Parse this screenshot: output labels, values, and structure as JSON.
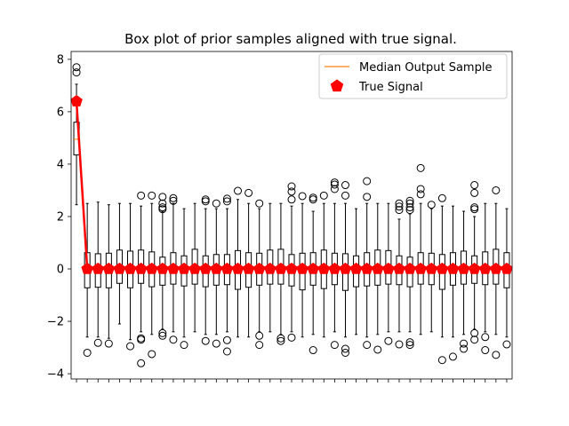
{
  "chart_data": {
    "type": "box",
    "title": "Box plot of prior samples aligned with true signal.",
    "xlabel": "",
    "ylabel": "",
    "ylim": [
      -4.2,
      8.3
    ],
    "yticks": [
      -4,
      -2,
      0,
      2,
      4,
      6,
      8
    ],
    "x_tick_labels_shown": false,
    "grid": false,
    "legend": {
      "position": "top-right",
      "entries": [
        {
          "label": "Median Output Sample",
          "marker": "line",
          "color": "#ff7f0e"
        },
        {
          "label": "True Signal",
          "marker": "pentagon",
          "color": "#ff0000"
        }
      ]
    },
    "box_color": "#000000",
    "median_color": "#ff7f0e",
    "true_signal_color": "#ff0000",
    "boxes": [
      {
        "median": 4.95,
        "q1": 4.35,
        "q3": 5.6,
        "whislo": 2.45,
        "whishi": 7.05,
        "fliers": [
          7.7,
          7.5
        ],
        "true": 6.4
      },
      {
        "median": 0.0,
        "q1": -0.72,
        "q3": 0.62,
        "whislo": -2.6,
        "whishi": 2.5,
        "fliers": [
          -3.2
        ],
        "true": 0.0
      },
      {
        "median": 0.0,
        "q1": -0.7,
        "q3": 0.58,
        "whislo": -2.6,
        "whishi": 2.55,
        "fliers": [
          -2.82
        ],
        "true": 0.0
      },
      {
        "median": 0.0,
        "q1": -0.72,
        "q3": 0.6,
        "whislo": -2.65,
        "whishi": 2.45,
        "fliers": [
          -2.85
        ],
        "true": 0.0
      },
      {
        "median": 0.0,
        "q1": -0.55,
        "q3": 0.72,
        "whislo": -2.1,
        "whishi": 2.5,
        "fliers": [],
        "true": 0.0
      },
      {
        "median": 0.0,
        "q1": -0.72,
        "q3": 0.68,
        "whislo": -2.7,
        "whishi": 2.5,
        "fliers": [
          -2.95
        ],
        "true": 0.0
      },
      {
        "median": 0.0,
        "q1": -0.55,
        "q3": 0.72,
        "whislo": -2.4,
        "whishi": 2.4,
        "fliers": [
          2.8,
          -2.65,
          -2.7,
          -3.6
        ],
        "true": 0.0
      },
      {
        "median": 0.0,
        "q1": -0.68,
        "q3": 0.65,
        "whislo": -2.5,
        "whishi": 2.5,
        "fliers": [
          2.8,
          -3.25
        ],
        "true": 0.0
      },
      {
        "median": 0.0,
        "q1": -0.62,
        "q3": 0.45,
        "whislo": -2.3,
        "whishi": 2.2,
        "fliers": [
          2.75,
          2.5,
          2.35,
          2.28,
          -2.45,
          -2.55
        ],
        "true": 0.0
      },
      {
        "median": 0.0,
        "q1": -0.58,
        "q3": 0.62,
        "whislo": -2.4,
        "whishi": 2.5,
        "fliers": [
          2.7,
          2.6,
          -2.7
        ],
        "true": 0.0
      },
      {
        "median": 0.0,
        "q1": -0.65,
        "q3": 0.5,
        "whislo": -2.6,
        "whishi": 2.3,
        "fliers": [
          -2.9
        ],
        "true": 0.0
      },
      {
        "median": 0.0,
        "q1": -0.58,
        "q3": 0.75,
        "whislo": -2.4,
        "whishi": 2.5,
        "fliers": [],
        "true": 0.0
      },
      {
        "median": 0.0,
        "q1": -0.68,
        "q3": 0.5,
        "whislo": -2.5,
        "whishi": 2.3,
        "fliers": [
          2.65,
          2.58,
          -2.75
        ],
        "true": 0.0
      },
      {
        "median": 0.0,
        "q1": -0.62,
        "q3": 0.55,
        "whislo": -2.5,
        "whishi": 2.3,
        "fliers": [
          2.5,
          -2.85
        ],
        "true": 0.0
      },
      {
        "median": 0.0,
        "q1": -0.6,
        "q3": 0.55,
        "whislo": -2.4,
        "whishi": 2.3,
        "fliers": [
          2.68,
          2.58,
          -2.72,
          -3.15
        ],
        "true": 0.0
      },
      {
        "median": 0.0,
        "q1": -0.78,
        "q3": 0.7,
        "whislo": -2.6,
        "whishi": 2.65,
        "fliers": [
          2.98
        ],
        "true": 0.0
      },
      {
        "median": 0.0,
        "q1": -0.7,
        "q3": 0.62,
        "whislo": -2.6,
        "whishi": 2.5,
        "fliers": [
          2.9
        ],
        "true": 0.0
      },
      {
        "median": 0.0,
        "q1": -0.62,
        "q3": 0.6,
        "whislo": -2.4,
        "whishi": 2.3,
        "fliers": [
          2.5,
          -2.55,
          -2.9
        ],
        "true": 0.0
      },
      {
        "median": 0.0,
        "q1": -0.58,
        "q3": 0.72,
        "whislo": -2.4,
        "whishi": 2.5,
        "fliers": [],
        "true": 0.0
      },
      {
        "median": 0.0,
        "q1": -0.58,
        "q3": 0.75,
        "whislo": -2.5,
        "whishi": 2.5,
        "fliers": [
          -2.65,
          -2.75
        ],
        "true": 0.0
      },
      {
        "median": 0.0,
        "q1": -0.65,
        "q3": 0.55,
        "whislo": -2.4,
        "whishi": 2.4,
        "fliers": [
          3.15,
          2.95,
          2.65,
          -2.62
        ],
        "true": 0.0
      },
      {
        "median": 0.0,
        "q1": -0.8,
        "q3": 0.6,
        "whislo": -2.6,
        "whishi": 2.5,
        "fliers": [
          2.78
        ],
        "true": 0.0
      },
      {
        "median": 0.0,
        "q1": -0.62,
        "q3": 0.62,
        "whislo": -2.5,
        "whishi": 2.2,
        "fliers": [
          2.72,
          2.65,
          -3.1
        ],
        "true": 0.0
      },
      {
        "median": 0.0,
        "q1": -0.75,
        "q3": 0.72,
        "whislo": -2.6,
        "whishi": 2.5,
        "fliers": [
          2.8
        ],
        "true": 0.0
      },
      {
        "median": 0.0,
        "q1": -0.6,
        "q3": 0.6,
        "whislo": -2.4,
        "whishi": 2.5,
        "fliers": [
          3.3,
          3.22,
          3.05,
          -2.9
        ],
        "true": 0.0
      },
      {
        "median": 0.0,
        "q1": -0.82,
        "q3": 0.58,
        "whislo": -2.6,
        "whishi": 2.5,
        "fliers": [
          3.2,
          2.8,
          -3.05,
          -3.2
        ],
        "true": 0.0
      },
      {
        "median": 0.0,
        "q1": -0.68,
        "q3": 0.5,
        "whislo": -2.5,
        "whishi": 2.3,
        "fliers": [],
        "true": 0.0
      },
      {
        "median": 0.0,
        "q1": -0.65,
        "q3": 0.62,
        "whislo": -2.6,
        "whishi": 2.5,
        "fliers": [
          3.35,
          2.75,
          -2.9
        ],
        "true": 0.0
      },
      {
        "median": 0.0,
        "q1": -0.62,
        "q3": 0.72,
        "whislo": -2.5,
        "whishi": 2.5,
        "fliers": [
          -3.08
        ],
        "true": 0.0
      },
      {
        "median": 0.0,
        "q1": -0.58,
        "q3": 0.7,
        "whislo": -2.4,
        "whishi": 2.5,
        "fliers": [
          -2.75
        ],
        "true": 0.0
      },
      {
        "median": 0.0,
        "q1": -0.6,
        "q3": 0.5,
        "whislo": -2.4,
        "whishi": 1.9,
        "fliers": [
          2.5,
          2.38,
          2.25,
          -2.88
        ],
        "true": 0.0
      },
      {
        "median": 0.0,
        "q1": -0.68,
        "q3": 0.45,
        "whislo": -2.4,
        "whishi": 2.1,
        "fliers": [
          2.6,
          2.5,
          2.35,
          2.25,
          -2.8,
          -2.9
        ],
        "true": 0.0
      },
      {
        "median": 0.0,
        "q1": -0.58,
        "q3": 0.62,
        "whislo": -2.5,
        "whishi": 2.5,
        "fliers": [
          3.85,
          3.05,
          2.85
        ],
        "true": 0.0
      },
      {
        "median": 0.0,
        "q1": -0.6,
        "q3": 0.6,
        "whislo": -2.4,
        "whishi": 2.3,
        "fliers": [
          2.45
        ],
        "true": 0.0
      },
      {
        "median": 0.0,
        "q1": -0.78,
        "q3": 0.55,
        "whislo": -2.6,
        "whishi": 2.4,
        "fliers": [
          2.7,
          -3.48
        ],
        "true": 0.0
      },
      {
        "median": 0.0,
        "q1": -0.62,
        "q3": 0.62,
        "whislo": -2.6,
        "whishi": 2.4,
        "fliers": [
          -3.35
        ],
        "true": 0.0
      },
      {
        "median": 0.0,
        "q1": -0.58,
        "q3": 0.68,
        "whislo": -2.5,
        "whishi": 2.2,
        "fliers": [
          -2.85,
          -3.05
        ],
        "true": 0.0
      },
      {
        "median": 0.0,
        "q1": -0.55,
        "q3": 0.5,
        "whislo": -2.3,
        "whishi": 2.0,
        "fliers": [
          3.2,
          2.9,
          2.35,
          2.28,
          -2.45,
          -2.7
        ],
        "true": 0.0
      },
      {
        "median": 0.0,
        "q1": -0.6,
        "q3": 0.65,
        "whislo": -2.4,
        "whishi": 2.5,
        "fliers": [
          -2.6,
          -3.1
        ],
        "true": 0.0
      },
      {
        "median": 0.0,
        "q1": -0.58,
        "q3": 0.75,
        "whislo": -2.5,
        "whishi": 2.5,
        "fliers": [
          3.0,
          -3.28
        ],
        "true": 0.0
      },
      {
        "median": 0.0,
        "q1": -0.72,
        "q3": 0.62,
        "whislo": -2.6,
        "whishi": 2.3,
        "fliers": [
          -2.88
        ],
        "true": 0.0
      }
    ]
  }
}
